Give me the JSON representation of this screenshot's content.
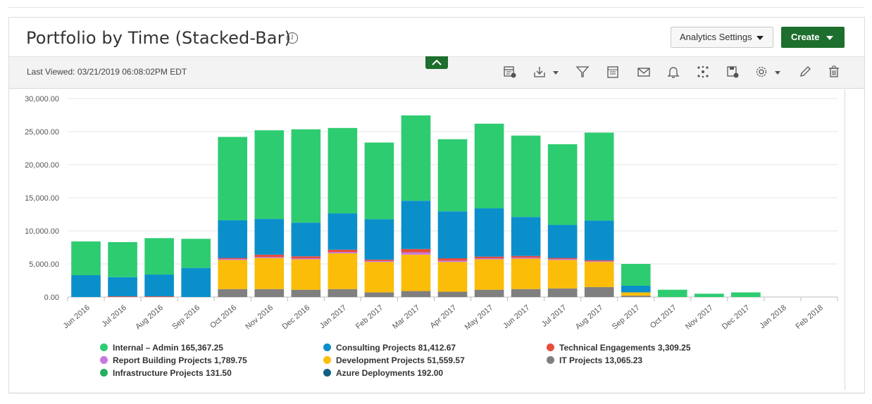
{
  "page": {
    "title": "Portfolio by Time (Stacked-Bar)",
    "info_icon": "info-icon"
  },
  "header": {
    "analytics_settings_label": "Analytics Settings",
    "create_label": "Create"
  },
  "toolbar": {
    "last_viewed": "Last Viewed: 03/21/2019 06:08:02PM EDT",
    "icons": [
      "report-settings-icon",
      "download-icon",
      "filter-icon",
      "calendar-icon",
      "email-icon",
      "bell-icon",
      "share-icon",
      "save-icon",
      "gear-icon",
      "edit-icon",
      "trash-icon"
    ]
  },
  "colors": {
    "accent": "#1e6e2e",
    "internal_admin": "#2ecc71",
    "consulting": "#0b8fcb",
    "technical": "#e74c3c",
    "report_building": "#c678dd",
    "development": "#fbbd08",
    "it_projects": "#7f7f7f",
    "infrastructure": "#27ae60",
    "azure": "#145f82"
  },
  "chart_data": {
    "type": "bar",
    "stacked": true,
    "categories": [
      "Jun 2016",
      "Jul 2016",
      "Aug 2016",
      "Sep 2016",
      "Oct 2016",
      "Nov 2016",
      "Dec 2016",
      "Jan 2017",
      "Feb 2017",
      "Mar 2017",
      "Apr 2017",
      "May 2017",
      "Jun 2017",
      "Jul 2017",
      "Aug 2017",
      "Sep 2017",
      "Oct 2017",
      "Nov 2017",
      "Dec 2017",
      "Jan 2018",
      "Feb 2018"
    ],
    "ylim": [
      0,
      30000
    ],
    "yticks": [
      "0.00",
      "5,000.00",
      "10,000.00",
      "15,000.00",
      "20,000.00",
      "25,000.00",
      "30,000.00"
    ],
    "grid": true,
    "legend_position": "bottom",
    "series": [
      {
        "name": "IT Projects 13,065.23",
        "color": "#7f7f7f",
        "values": [
          0,
          0,
          0,
          0,
          1200,
          1200,
          1100,
          1200,
          700,
          900,
          800,
          1100,
          1200,
          1300,
          1500,
          200,
          0,
          0,
          0,
          0,
          0
        ]
      },
      {
        "name": "Development Projects 51,559.57",
        "color": "#fbbd08",
        "values": [
          0,
          0,
          0,
          0,
          4400,
          4700,
          4600,
          5400,
          4600,
          5500,
          4500,
          4600,
          4600,
          4300,
          3800,
          500,
          0,
          0,
          0,
          0,
          0
        ]
      },
      {
        "name": "Report Building Projects 1,789.75",
        "color": "#c678dd",
        "values": [
          0,
          0,
          0,
          0,
          150,
          150,
          150,
          200,
          150,
          350,
          200,
          150,
          150,
          150,
          100,
          0,
          0,
          0,
          0,
          0,
          0
        ]
      },
      {
        "name": "Technical Engagements 3,309.25",
        "color": "#e74c3c",
        "values": [
          0,
          100,
          100,
          0,
          150,
          350,
          300,
          350,
          200,
          500,
          350,
          250,
          250,
          150,
          150,
          0,
          0,
          0,
          0,
          0,
          0
        ]
      },
      {
        "name": "Azure Deployments 192.00",
        "color": "#145f82",
        "values": [
          0,
          0,
          0,
          0,
          0,
          0,
          0,
          0,
          0,
          0,
          0,
          0,
          0,
          0,
          0,
          0,
          0,
          0,
          0,
          0,
          0
        ]
      },
      {
        "name": "Consulting Projects 81,412.67",
        "color": "#0b8fcb",
        "values": [
          3300,
          2900,
          3300,
          4400,
          5700,
          5400,
          5100,
          5500,
          6100,
          7300,
          7100,
          7300,
          5900,
          5000,
          6000,
          1000,
          0,
          0,
          0,
          0,
          0
        ]
      },
      {
        "name": "Infrastructure Projects 131.50",
        "color": "#27ae60",
        "values": [
          0,
          0,
          0,
          0,
          0,
          0,
          0,
          0,
          0,
          0,
          0,
          0,
          0,
          0,
          0,
          0,
          0,
          0,
          0,
          0,
          0
        ]
      },
      {
        "name": "Internal – Admin 165,367.25",
        "color": "#2ecc71",
        "values": [
          5100,
          5300,
          5500,
          4400,
          12600,
          13400,
          14100,
          12900,
          11600,
          12900,
          10900,
          12800,
          12300,
          12200,
          13300,
          3300,
          1100,
          500,
          700,
          0,
          0
        ]
      }
    ],
    "legend": [
      [
        "Internal – Admin 165,367.25",
        "Consulting Projects 81,412.67",
        "Technical Engagements 3,309.25"
      ],
      [
        "Report Building Projects 1,789.75",
        "Development Projects 51,559.57",
        "IT Projects 13,065.23"
      ],
      [
        "Infrastructure Projects 131.50",
        "Azure Deployments 192.00"
      ]
    ]
  }
}
